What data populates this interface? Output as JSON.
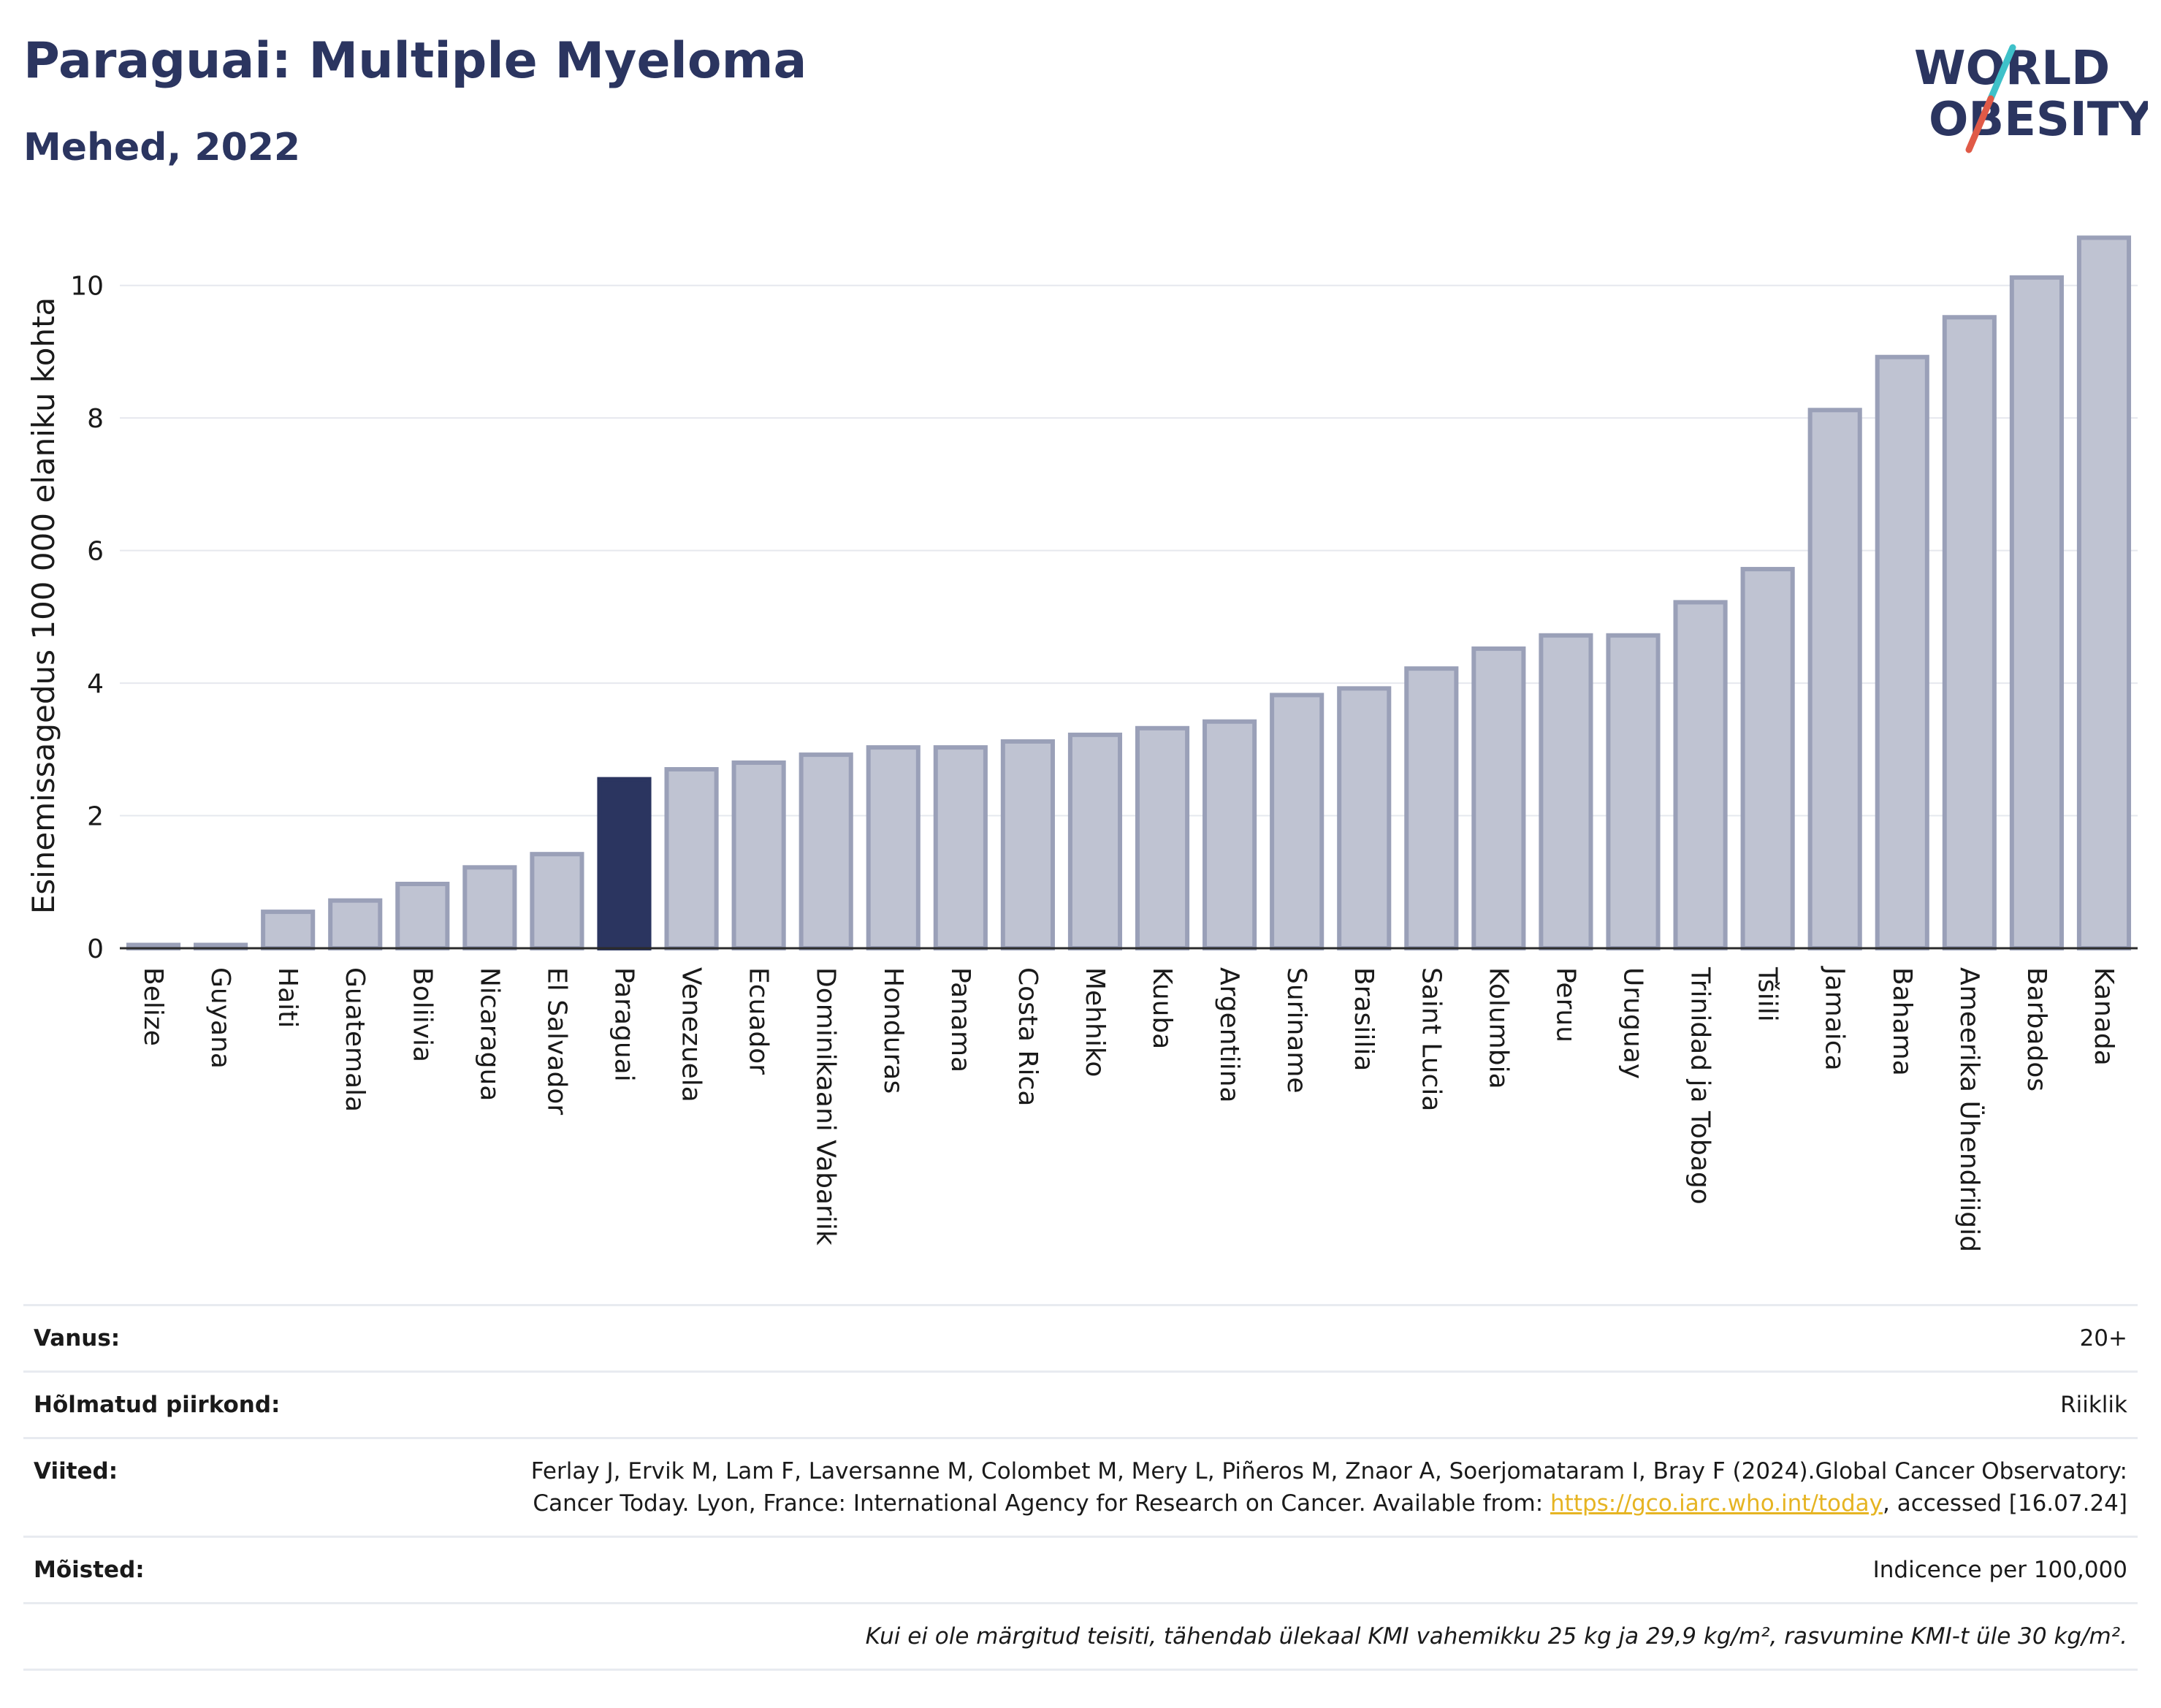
{
  "header": {
    "title": "Paraguai: Multiple Myeloma",
    "subtitle": "Mehed, 2022"
  },
  "logo": {
    "line1": "WORLD",
    "line2": "OBESITY",
    "colors": {
      "text": "#2b3560",
      "slash_red": "#e05a47",
      "slash_teal": "#3ec1c9"
    }
  },
  "chart_data": {
    "type": "bar",
    "title": "Paraguai: Multiple Myeloma",
    "subtitle": "Mehed, 2022",
    "xlabel": "",
    "ylabel": "Esinemissagedus 100 000 elaniku kohta",
    "ylim": [
      0,
      11
    ],
    "yticks": [
      0,
      2,
      4,
      6,
      8,
      10
    ],
    "grid": true,
    "highlight": "Paraguai",
    "colors": {
      "bar": "#bfc3d2",
      "bar_edge": "#9aa0b8",
      "highlight": "#2b3560"
    },
    "categories": [
      "Belize",
      "Guyana",
      "Haiti",
      "Guatemala",
      "Boliivia",
      "Nicaragua",
      "El Salvador",
      "Paraguai",
      "Venezuela",
      "Ecuador",
      "Dominikaani Vabariik",
      "Honduras",
      "Panama",
      "Costa Rica",
      "Mehhiko",
      "Kuuba",
      "Argentiina",
      "Suriname",
      "Brasiilia",
      "Saint Lucia",
      "Kolumbia",
      "Peruu",
      "Uruguay",
      "Trinidad ja Tobago",
      "Tšiili",
      "Jamaica",
      "Bahama",
      "Ameerika Ühendriigid",
      "Barbados",
      "Kanada"
    ],
    "values": [
      0.05,
      0.05,
      0.55,
      0.72,
      0.97,
      1.22,
      1.42,
      2.55,
      2.7,
      2.8,
      2.92,
      3.03,
      3.03,
      3.12,
      3.22,
      3.32,
      3.42,
      3.82,
      3.92,
      4.22,
      4.52,
      4.72,
      4.72,
      5.22,
      5.72,
      8.12,
      8.92,
      9.52,
      10.12,
      10.72
    ]
  },
  "info": {
    "age_label": "Vanus:",
    "age_value": "20+",
    "region_label": "Hõlmatud piirkond:",
    "region_value": "Riiklik",
    "refs_label": "Viited:",
    "refs_text": "Ferlay J, Ervik M, Lam F, Laversanne M, Colombet M, Mery L, Piñeros M, Znaor A, Soerjomataram I, Bray F (2024).Global Cancer Observatory: Cancer Today. Lyon, France: International Agency for Research on Cancer. Available from: ",
    "refs_link": "https://gco.iarc.who.int/today",
    "refs_tail": ", accessed [16.07.24]",
    "defs_label": "Mõisted:",
    "defs_value": "Indicence per 100,000",
    "footnote": "Kui ei ole märgitud teisiti, tähendab ülekaal KMI vahemikku 25 kg ja 29,9 kg/m², rasvumine KMI-t üle 30 kg/m²."
  }
}
